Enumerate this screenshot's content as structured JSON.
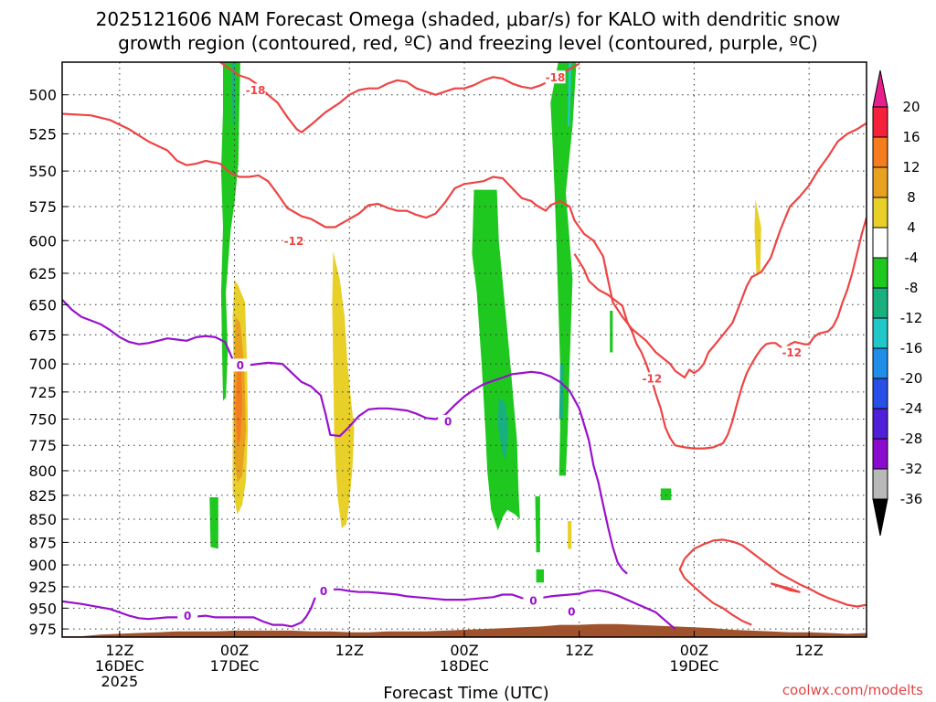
{
  "chart_data": {
    "type": "heatmap",
    "title_line1": "2025121606 NAM Forecast Omega (shaded, μbar/s) for KALO with dendritic snow",
    "title_line2": "growth region (contoured, red, ºC) and freezing level (contoured, purple, ºC)",
    "xlabel": "Forecast Time (UTC)",
    "credit": "coolwx.com/modelts",
    "x_ticks": [
      {
        "h": 6,
        "lines": [
          "12Z",
          "16DEC",
          "2025"
        ]
      },
      {
        "h": 18,
        "lines": [
          "00Z",
          "17DEC"
        ]
      },
      {
        "h": 30,
        "lines": [
          "12Z"
        ]
      },
      {
        "h": 42,
        "lines": [
          "00Z",
          "18DEC"
        ]
      },
      {
        "h": 54,
        "lines": [
          "12Z"
        ]
      },
      {
        "h": 66,
        "lines": [
          "00Z",
          "19DEC"
        ]
      },
      {
        "h": 78,
        "lines": [
          "12Z"
        ]
      }
    ],
    "xlim_hours": [
      0,
      84
    ],
    "y_ticks": [
      500,
      525,
      550,
      575,
      600,
      625,
      650,
      675,
      700,
      725,
      750,
      775,
      800,
      825,
      850,
      875,
      900,
      925,
      950,
      975
    ],
    "ylim_hpa": [
      480,
      985
    ],
    "y_scale": "log",
    "colorbar": {
      "labels": [
        "20",
        "16",
        "12",
        "8",
        "4",
        "-4",
        "-8",
        "-12",
        "-16",
        "-20",
        "-24",
        "-28",
        "-32",
        "-36"
      ],
      "colors": [
        "#f5203a",
        "#f57d20",
        "#e8a21f",
        "#e8d028",
        "#ffffff",
        "#1fc81f",
        "#19b080",
        "#20c8c8",
        "#1e8ee8",
        "#2850e8",
        "#5020d8",
        "#8a0ad0",
        "#b8b8b8"
      ],
      "top_color": "#e81e8c",
      "bottom_color": "#000000"
    },
    "contour_labels": {
      "dgz_upper": "-18",
      "dgz_lower": "-12",
      "freezing": "0"
    },
    "colors": {
      "dgz": "#ee4444",
      "freezing": "#9911cc",
      "terrain": "#a0522d",
      "grid": "#333333"
    },
    "dgz_upper": [
      [
        16.5,
        480
      ],
      [
        17.5,
        484
      ],
      [
        18.5,
        488
      ],
      [
        19.5,
        490
      ],
      [
        20.5,
        494
      ],
      [
        21.5,
        500
      ],
      [
        22.5,
        505
      ],
      [
        23.5,
        514
      ],
      [
        24.5,
        522
      ],
      [
        25,
        524
      ],
      [
        26,
        519
      ],
      [
        27.5,
        511
      ],
      [
        29,
        505
      ],
      [
        30,
        500
      ],
      [
        31,
        497
      ],
      [
        32,
        496
      ],
      [
        33,
        496
      ],
      [
        34,
        493
      ],
      [
        35,
        491
      ],
      [
        36,
        492
      ],
      [
        37,
        496
      ],
      [
        38,
        498
      ],
      [
        39,
        500
      ],
      [
        40,
        498
      ],
      [
        41,
        496
      ],
      [
        42,
        496
      ],
      [
        43,
        494
      ],
      [
        44,
        491
      ],
      [
        45,
        489
      ],
      [
        46,
        490
      ],
      [
        47,
        493
      ],
      [
        48,
        495
      ],
      [
        49,
        496
      ],
      [
        50,
        494
      ],
      [
        51,
        491
      ],
      [
        52,
        488
      ],
      [
        53,
        484
      ],
      [
        54,
        481
      ]
    ],
    "dgz_lower": [
      [
        0,
        512
      ],
      [
        3,
        513
      ],
      [
        5,
        516
      ],
      [
        7,
        522
      ],
      [
        9,
        530
      ],
      [
        11,
        536
      ],
      [
        12,
        543
      ],
      [
        13,
        546
      ],
      [
        14,
        545
      ],
      [
        15,
        543
      ],
      [
        16.5,
        545
      ],
      [
        17.5,
        551
      ],
      [
        18.5,
        554
      ],
      [
        19.5,
        554
      ],
      [
        20.5,
        553
      ],
      [
        21.5,
        557
      ],
      [
        22.5,
        566
      ],
      [
        23.5,
        576
      ],
      [
        25,
        582
      ],
      [
        26,
        584
      ],
      [
        27.5,
        590
      ],
      [
        28.5,
        590
      ],
      [
        29.5,
        586
      ],
      [
        31,
        580
      ],
      [
        32,
        574
      ],
      [
        33,
        573
      ],
      [
        34,
        576
      ],
      [
        35,
        578
      ],
      [
        36,
        578
      ],
      [
        37,
        581
      ],
      [
        38,
        583
      ],
      [
        39,
        580
      ],
      [
        40,
        572
      ],
      [
        41,
        562
      ],
      [
        42,
        559
      ],
      [
        43,
        558
      ],
      [
        44,
        557
      ],
      [
        45,
        554
      ],
      [
        46,
        555
      ],
      [
        47,
        562
      ],
      [
        48,
        569
      ],
      [
        49,
        571
      ],
      [
        49.5,
        574
      ],
      [
        50.5,
        578
      ],
      [
        51,
        574
      ],
      [
        52,
        571
      ],
      [
        53,
        575
      ],
      [
        53.5,
        585
      ],
      [
        54,
        590
      ],
      [
        54.5,
        595
      ],
      [
        55.5,
        600
      ],
      [
        56.5,
        612
      ],
      [
        57,
        630
      ],
      [
        57.5,
        648
      ],
      [
        58.5,
        660
      ],
      [
        59.5,
        670
      ],
      [
        61,
        680
      ],
      [
        62,
        690
      ],
      [
        63.5,
        700
      ],
      [
        64,
        706
      ],
      [
        65,
        712
      ],
      [
        65.5,
        705
      ],
      [
        66,
        708
      ],
      [
        66.5,
        705
      ],
      [
        67,
        700
      ],
      [
        67.5,
        690
      ],
      [
        68.5,
        680
      ],
      [
        69,
        675
      ],
      [
        69.5,
        670
      ],
      [
        70,
        665
      ],
      [
        70.5,
        655
      ],
      [
        71,
        645
      ],
      [
        71.5,
        635
      ],
      [
        72,
        628
      ],
      [
        73,
        624
      ],
      [
        74,
        613
      ],
      [
        75,
        592
      ],
      [
        76,
        575
      ],
      [
        77,
        568
      ],
      [
        78,
        560
      ],
      [
        79,
        549
      ],
      [
        80,
        540
      ],
      [
        81,
        530
      ],
      [
        82,
        525
      ],
      [
        83,
        522
      ],
      [
        84,
        518
      ]
    ],
    "dgz_lower_sw": [
      [
        84,
        583
      ],
      [
        83.5,
        595
      ],
      [
        83,
        610
      ],
      [
        82.5,
        625
      ],
      [
        82,
        638
      ],
      [
        81.5,
        648
      ],
      [
        81,
        660
      ],
      [
        80.5,
        668
      ],
      [
        80,
        672
      ],
      [
        79.5,
        673
      ],
      [
        79,
        674
      ],
      [
        78.5,
        677
      ],
      [
        78,
        683
      ],
      [
        77.5,
        683
      ],
      [
        77,
        682
      ],
      [
        76.5,
        681
      ],
      [
        76,
        683
      ],
      [
        75.5,
        686
      ],
      [
        75,
        685
      ],
      [
        74.5,
        682
      ],
      [
        74,
        682
      ],
      [
        73.5,
        683
      ],
      [
        73,
        687
      ],
      [
        72.5,
        693
      ],
      [
        72,
        700
      ],
      [
        71.5,
        708
      ],
      [
        71,
        720
      ],
      [
        70.5,
        735
      ],
      [
        70,
        752
      ],
      [
        69.5,
        765
      ],
      [
        69,
        773
      ],
      [
        68,
        777
      ],
      [
        67,
        778
      ],
      [
        66,
        778
      ],
      [
        65,
        777
      ],
      [
        64,
        775
      ],
      [
        63.5,
        768
      ],
      [
        63,
        758
      ],
      [
        62.5,
        740
      ],
      [
        62,
        727
      ],
      [
        61.5,
        712
      ],
      [
        61,
        700
      ],
      [
        60.5,
        690
      ],
      [
        60,
        683
      ],
      [
        59.5,
        672
      ],
      [
        59,
        664
      ],
      [
        58.5,
        651
      ],
      [
        57,
        642
      ],
      [
        56,
        638
      ],
      [
        55,
        631
      ],
      [
        54.5,
        622
      ],
      [
        53.5,
        610
      ]
    ],
    "dgz_island": [
      [
        74,
        921
      ],
      [
        75,
        925
      ],
      [
        76,
        929
      ],
      [
        77,
        931
      ],
      [
        76,
        927
      ],
      [
        75,
        924
      ],
      [
        74,
        921
      ]
    ],
    "dgz_bottom": [
      [
        65,
        893
      ],
      [
        66,
        882
      ],
      [
        67,
        877
      ],
      [
        68,
        873
      ],
      [
        69,
        872
      ],
      [
        70,
        874
      ],
      [
        71,
        878
      ],
      [
        72,
        886
      ],
      [
        73,
        894
      ],
      [
        74,
        902
      ],
      [
        75,
        910
      ],
      [
        76,
        916
      ],
      [
        77,
        922
      ],
      [
        78,
        927
      ],
      [
        79,
        933
      ],
      [
        80,
        938
      ],
      [
        81,
        942
      ],
      [
        82,
        946
      ],
      [
        83,
        948
      ],
      [
        84,
        946
      ]
    ],
    "dgz_bottom_w": [
      [
        65,
        893
      ],
      [
        64.5,
        905
      ],
      [
        65,
        915
      ],
      [
        66,
        925
      ],
      [
        67,
        935
      ],
      [
        68,
        944
      ],
      [
        69,
        950
      ],
      [
        70,
        958
      ],
      [
        71,
        965
      ],
      [
        72,
        970
      ]
    ],
    "freezing": [
      [
        0,
        646
      ],
      [
        1,
        654
      ],
      [
        2,
        660
      ],
      [
        3,
        663
      ],
      [
        4,
        666
      ],
      [
        5,
        671
      ],
      [
        6,
        677
      ],
      [
        7,
        681
      ],
      [
        8,
        683
      ],
      [
        9,
        682
      ],
      [
        10,
        680
      ],
      [
        11,
        678
      ],
      [
        12,
        679
      ],
      [
        13,
        680
      ],
      [
        14,
        677
      ],
      [
        15,
        676
      ],
      [
        16,
        677
      ],
      [
        17,
        681
      ],
      [
        17.5,
        690
      ],
      [
        18,
        700
      ],
      [
        18.5,
        702
      ],
      [
        19.5,
        701
      ],
      [
        20.5,
        700
      ],
      [
        21.5,
        699
      ],
      [
        23,
        700
      ],
      [
        24,
        708
      ],
      [
        25,
        716
      ],
      [
        26,
        720
      ],
      [
        27,
        728
      ],
      [
        27.5,
        745
      ],
      [
        28,
        765
      ],
      [
        29,
        766
      ],
      [
        30,
        757
      ],
      [
        31,
        747
      ],
      [
        32,
        741
      ],
      [
        33,
        740
      ],
      [
        34,
        740
      ],
      [
        35,
        741
      ],
      [
        36,
        742
      ],
      [
        37,
        745
      ],
      [
        38,
        749
      ],
      [
        39,
        750
      ],
      [
        40,
        746
      ],
      [
        41,
        737
      ],
      [
        42,
        729
      ],
      [
        43,
        723
      ],
      [
        44,
        718
      ],
      [
        45,
        715
      ],
      [
        46,
        712
      ],
      [
        47,
        709
      ],
      [
        48,
        708
      ],
      [
        49,
        707
      ],
      [
        50,
        708
      ],
      [
        51,
        711
      ],
      [
        52,
        716
      ],
      [
        53,
        724
      ],
      [
        54,
        740
      ],
      [
        55,
        770
      ],
      [
        55.5,
        795
      ],
      [
        56,
        812
      ],
      [
        56.5,
        835
      ],
      [
        57,
        858
      ],
      [
        57.5,
        880
      ],
      [
        58,
        897
      ],
      [
        58.5,
        905
      ],
      [
        59,
        910
      ]
    ],
    "freezing_low": [
      [
        0,
        942
      ],
      [
        2,
        945
      ],
      [
        4,
        949
      ],
      [
        5,
        951
      ],
      [
        6,
        955
      ],
      [
        7,
        959
      ],
      [
        8,
        962
      ],
      [
        9,
        963
      ],
      [
        10,
        962
      ],
      [
        11,
        961
      ],
      [
        12,
        961
      ],
      [
        13,
        960
      ],
      [
        14,
        960
      ],
      [
        15,
        959
      ],
      [
        16,
        961
      ],
      [
        17,
        961
      ],
      [
        18,
        961
      ],
      [
        19,
        961
      ],
      [
        20,
        961
      ],
      [
        21,
        966
      ],
      [
        22,
        970
      ],
      [
        23,
        970
      ],
      [
        24,
        972
      ],
      [
        25,
        967
      ],
      [
        25.5,
        960
      ],
      [
        26,
        950
      ],
      [
        26.5,
        935
      ],
      [
        27,
        930
      ],
      [
        28,
        928
      ],
      [
        29,
        928
      ],
      [
        30,
        930
      ],
      [
        31,
        931
      ],
      [
        32,
        931
      ],
      [
        33,
        932
      ],
      [
        34,
        933
      ],
      [
        35,
        934
      ],
      [
        36,
        936
      ],
      [
        37,
        937
      ],
      [
        38,
        938
      ],
      [
        39,
        939
      ],
      [
        40,
        940
      ],
      [
        41,
        940
      ],
      [
        42,
        940
      ],
      [
        43,
        939
      ],
      [
        44,
        938
      ],
      [
        45,
        937
      ],
      [
        46,
        934
      ],
      [
        47,
        934
      ],
      [
        48,
        938
      ],
      [
        49,
        940
      ],
      [
        50,
        938
      ],
      [
        51,
        936
      ],
      [
        52,
        935
      ],
      [
        53,
        934
      ],
      [
        54,
        933
      ],
      [
        55,
        930
      ],
      [
        56,
        929
      ],
      [
        57,
        931
      ],
      [
        58,
        935
      ],
      [
        59,
        940
      ],
      [
        60,
        945
      ],
      [
        61,
        950
      ],
      [
        62,
        955
      ],
      [
        63,
        965
      ],
      [
        64,
        975
      ]
    ]
  }
}
